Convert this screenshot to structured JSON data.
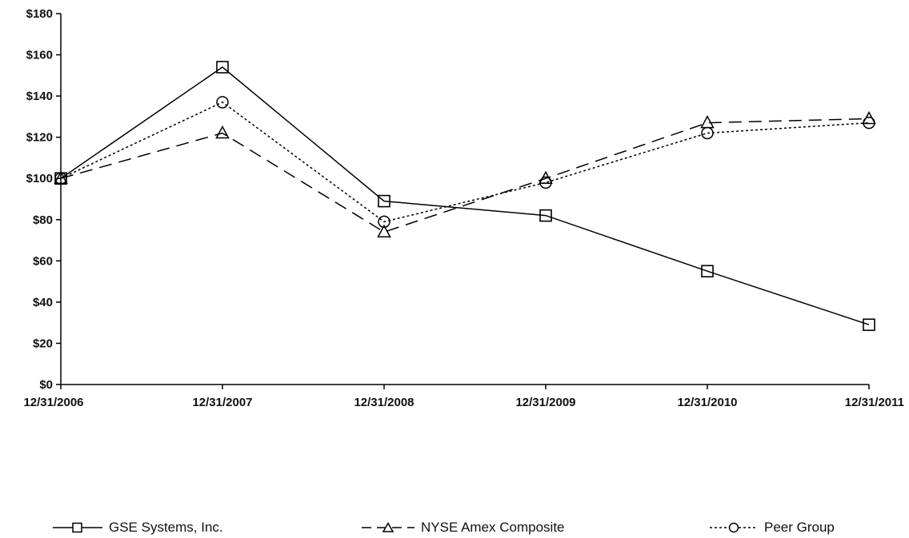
{
  "chart_data": {
    "type": "line",
    "categories": [
      "12/31/2006",
      "12/31/2007",
      "12/31/2008",
      "12/31/2009",
      "12/31/2010",
      "12/31/2011"
    ],
    "y_ticks": [
      "$0",
      "$20",
      "$40",
      "$60",
      "$80",
      "$100",
      "$120",
      "$140",
      "$160",
      "$180"
    ],
    "ylim": [
      0,
      180
    ],
    "grid": false,
    "legend_position": "bottom",
    "series": [
      {
        "name": "GSE Systems, Inc.",
        "marker": "square",
        "dash": "solid",
        "values": [
          100,
          154,
          89,
          82,
          55,
          29
        ]
      },
      {
        "name": "NYSE Amex Composite",
        "marker": "triangle",
        "dash": "long-dash",
        "values": [
          100,
          122,
          74,
          100,
          127,
          129
        ]
      },
      {
        "name": "Peer Group",
        "marker": "circle",
        "dash": "dotted",
        "values": [
          100,
          137,
          79,
          98,
          122,
          127
        ]
      }
    ]
  }
}
